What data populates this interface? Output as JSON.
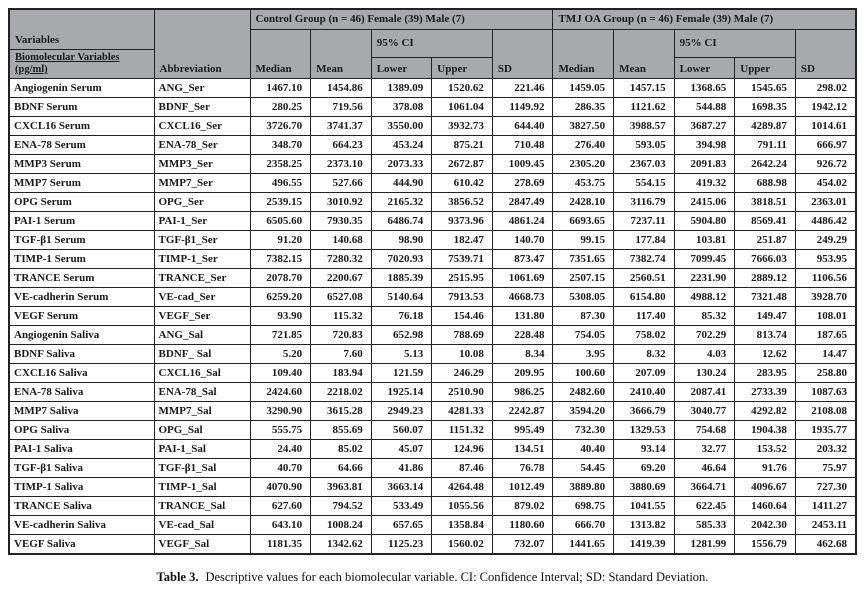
{
  "colors": {
    "header_bg": "#a7a9ac",
    "border": "#222222"
  },
  "table": {
    "header": {
      "variables_label": "Variables",
      "biomolecular_line1": "Biomolecular Variables",
      "biomolecular_line2": "(pg/ml)",
      "abbreviation_label": "Abbreviation",
      "control_group_label": "Control Group (n = 46) Female (39) Male (7)",
      "tmj_group_label": "TMJ OA Group (n = 46) Female (39) Male (7)",
      "ci_label": "95% CI",
      "median_label": "Median",
      "mean_label": "Mean",
      "lower_label": "Lower",
      "upper_label": "Upper",
      "sd_label": "SD"
    },
    "rows": [
      {
        "variable": "Angiogenin Serum",
        "abbr": "ANG_Ser",
        "control": [
          "1467.10",
          "1454.86",
          "1389.09",
          "1520.62",
          "221.46"
        ],
        "tmj": [
          "1459.05",
          "1457.15",
          "1368.65",
          "1545.65",
          "298.02"
        ]
      },
      {
        "variable": "BDNF Serum",
        "abbr": "BDNF_Ser",
        "control": [
          "280.25",
          "719.56",
          "378.08",
          "1061.04",
          "1149.92"
        ],
        "tmj": [
          "286.35",
          "1121.62",
          "544.88",
          "1698.35",
          "1942.12"
        ]
      },
      {
        "variable": "CXCL16 Serum",
        "abbr": "CXCL16_Ser",
        "control": [
          "3726.70",
          "3741.37",
          "3550.00",
          "3932.73",
          "644.40"
        ],
        "tmj": [
          "3827.50",
          "3988.57",
          "3687.27",
          "4289.87",
          "1014.61"
        ]
      },
      {
        "variable": "ENA-78 Serum",
        "abbr": "ENA-78_Ser",
        "control": [
          "348.70",
          "664.23",
          "453.24",
          "875.21",
          "710.48"
        ],
        "tmj": [
          "276.40",
          "593.05",
          "394.98",
          "791.11",
          "666.97"
        ]
      },
      {
        "variable": "MMP3 Serum",
        "abbr": "MMP3_Ser",
        "control": [
          "2358.25",
          "2373.10",
          "2073.33",
          "2672.87",
          "1009.45"
        ],
        "tmj": [
          "2305.20",
          "2367.03",
          "2091.83",
          "2642.24",
          "926.72"
        ]
      },
      {
        "variable": "MMP7 Serum",
        "abbr": "MMP7_Ser",
        "control": [
          "496.55",
          "527.66",
          "444.90",
          "610.42",
          "278.69"
        ],
        "tmj": [
          "453.75",
          "554.15",
          "419.32",
          "688.98",
          "454.02"
        ]
      },
      {
        "variable": "OPG Serum",
        "abbr": "OPG_Ser",
        "control": [
          "2539.15",
          "3010.92",
          "2165.32",
          "3856.52",
          "2847.49"
        ],
        "tmj": [
          "2428.10",
          "3116.79",
          "2415.06",
          "3818.51",
          "2363.01"
        ]
      },
      {
        "variable": "PAI-1 Serum",
        "abbr": "PAI-1_Ser",
        "control": [
          "6505.60",
          "7930.35",
          "6486.74",
          "9373.96",
          "4861.24"
        ],
        "tmj": [
          "6693.65",
          "7237.11",
          "5904.80",
          "8569.41",
          "4486.42"
        ]
      },
      {
        "variable": "TGF-β1 Serum",
        "abbr": "TGF-β1_Ser",
        "control": [
          "91.20",
          "140.68",
          "98.90",
          "182.47",
          "140.70"
        ],
        "tmj": [
          "99.15",
          "177.84",
          "103.81",
          "251.87",
          "249.29"
        ]
      },
      {
        "variable": "TIMP-1 Serum",
        "abbr": "TIMP-1_Ser",
        "control": [
          "7382.15",
          "7280.32",
          "7020.93",
          "7539.71",
          "873.47"
        ],
        "tmj": [
          "7351.65",
          "7382.74",
          "7099.45",
          "7666.03",
          "953.95"
        ]
      },
      {
        "variable": "TRANCE Serum",
        "abbr": "TRANCE_Ser",
        "control": [
          "2078.70",
          "2200.67",
          "1885.39",
          "2515.95",
          "1061.69"
        ],
        "tmj": [
          "2507.15",
          "2560.51",
          "2231.90",
          "2889.12",
          "1106.56"
        ]
      },
      {
        "variable": "VE-cadherin Serum",
        "abbr": "VE-cad_Ser",
        "control": [
          "6259.20",
          "6527.08",
          "5140.64",
          "7913.53",
          "4668.73"
        ],
        "tmj": [
          "5308.05",
          "6154.80",
          "4988.12",
          "7321.48",
          "3928.70"
        ]
      },
      {
        "variable": "VEGF Serum",
        "abbr": "VEGF_Ser",
        "control": [
          "93.90",
          "115.32",
          "76.18",
          "154.46",
          "131.80"
        ],
        "tmj": [
          "87.30",
          "117.40",
          "85.32",
          "149.47",
          "108.01"
        ]
      },
      {
        "variable": "Angiogenin Saliva",
        "abbr": "ANG_Sal",
        "control": [
          "721.85",
          "720.83",
          "652.98",
          "788.69",
          "228.48"
        ],
        "tmj": [
          "754.05",
          "758.02",
          "702.29",
          "813.74",
          "187.65"
        ]
      },
      {
        "variable": "BDNF Saliva",
        "abbr": "BDNF_ Sal",
        "control": [
          "5.20",
          "7.60",
          "5.13",
          "10.08",
          "8.34"
        ],
        "tmj": [
          "3.95",
          "8.32",
          "4.03",
          "12.62",
          "14.47"
        ]
      },
      {
        "variable": "CXCL16 Saliva",
        "abbr": "CXCL16_Sal",
        "control": [
          "109.40",
          "183.94",
          "121.59",
          "246.29",
          "209.95"
        ],
        "tmj": [
          "100.60",
          "207.09",
          "130.24",
          "283.95",
          "258.80"
        ]
      },
      {
        "variable": "ENA-78 Saliva",
        "abbr": "ENA-78_Sal",
        "control": [
          "2424.60",
          "2218.02",
          "1925.14",
          "2510.90",
          "986.25"
        ],
        "tmj": [
          "2482.60",
          "2410.40",
          "2087.41",
          "2733.39",
          "1087.63"
        ]
      },
      {
        "variable": "MMP7 Saliva",
        "abbr": "MMP7_Sal",
        "control": [
          "3290.90",
          "3615.28",
          "2949.23",
          "4281.33",
          "2242.87"
        ],
        "tmj": [
          "3594.20",
          "3666.79",
          "3040.77",
          "4292.82",
          "2108.08"
        ]
      },
      {
        "variable": "OPG Saliva",
        "abbr": "OPG_Sal",
        "control": [
          "555.75",
          "855.69",
          "560.07",
          "1151.32",
          "995.49"
        ],
        "tmj": [
          "732.30",
          "1329.53",
          "754.68",
          "1904.38",
          "1935.77"
        ]
      },
      {
        "variable": "PAI-1 Saliva",
        "abbr": "PAI-1_Sal",
        "control": [
          "24.40",
          "85.02",
          "45.07",
          "124.96",
          "134.51"
        ],
        "tmj": [
          "40.40",
          "93.14",
          "32.77",
          "153.52",
          "203.32"
        ]
      },
      {
        "variable": "TGF-β1 Saliva",
        "abbr": "TGF-β1_Sal",
        "control": [
          "40.70",
          "64.66",
          "41.86",
          "87.46",
          "76.78"
        ],
        "tmj": [
          "54.45",
          "69.20",
          "46.64",
          "91.76",
          "75.97"
        ]
      },
      {
        "variable": "TIMP-1 Saliva",
        "abbr": "TIMP-1_Sal",
        "control": [
          "4070.90",
          "3963.81",
          "3663.14",
          "4264.48",
          "1012.49"
        ],
        "tmj": [
          "3889.80",
          "3880.69",
          "3664.71",
          "4096.67",
          "727.30"
        ]
      },
      {
        "variable": "TRANCE Saliva",
        "abbr": "TRANCE_Sal",
        "control": [
          "627.60",
          "794.52",
          "533.49",
          "1055.56",
          "879.02"
        ],
        "tmj": [
          "698.75",
          "1041.55",
          "622.45",
          "1460.64",
          "1411.27"
        ]
      },
      {
        "variable": "VE-cadherin Saliva",
        "abbr": "VE-cad_Sal",
        "control": [
          "643.10",
          "1008.24",
          "657.65",
          "1358.84",
          "1180.60"
        ],
        "tmj": [
          "666.70",
          "1313.82",
          "585.33",
          "2042.30",
          "2453.11"
        ]
      },
      {
        "variable": "VEGF Saliva",
        "abbr": "VEGF_Sal",
        "control": [
          "1181.35",
          "1342.62",
          "1125.23",
          "1560.02",
          "732.07"
        ],
        "tmj": [
          "1441.65",
          "1419.39",
          "1281.99",
          "1556.79",
          "462.68"
        ]
      }
    ]
  },
  "caption": {
    "label": "Table 3.",
    "text": "Descriptive values for each biomolecular variable. CI: Confidence Interval; SD: Standard Deviation."
  }
}
